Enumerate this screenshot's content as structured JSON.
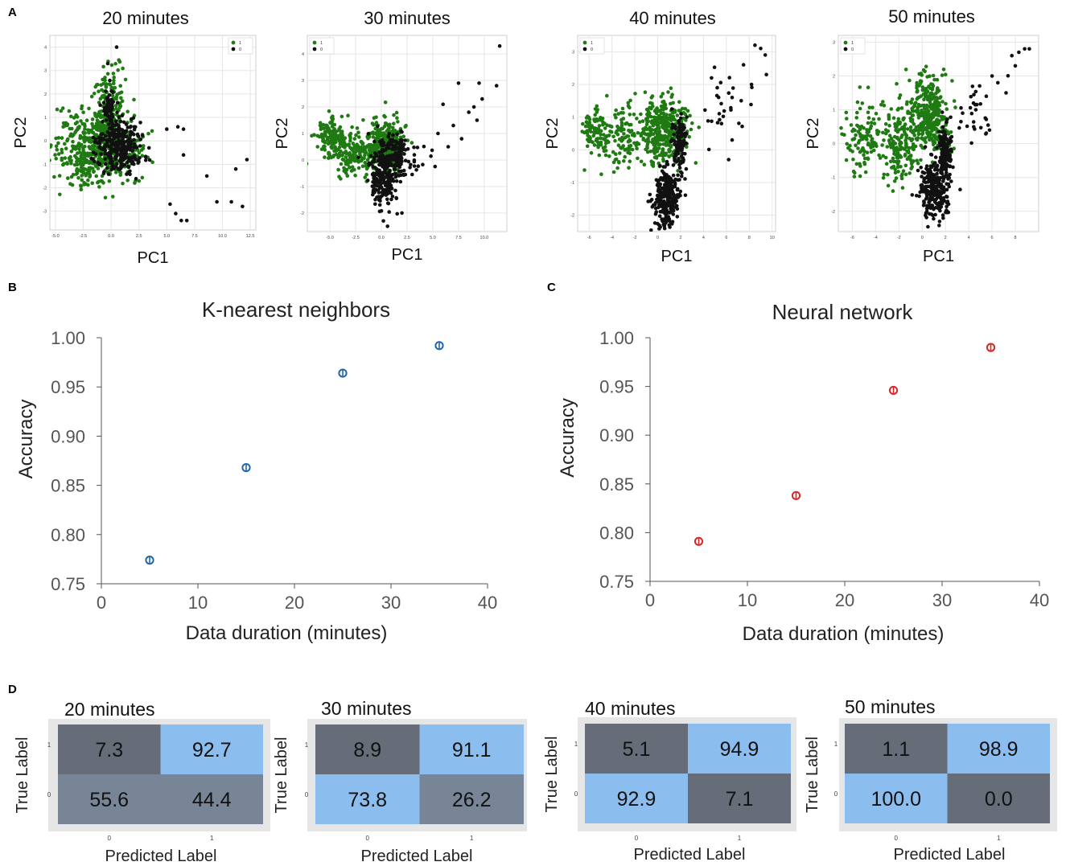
{
  "figure_panels": [
    "A",
    "B",
    "C",
    "D"
  ],
  "colors": {
    "class1": "#1f7a12",
    "class0": "#111111",
    "knn": "#2166ac",
    "nn": "#d62728",
    "cm_dark": "#666d78",
    "cm_mid": "#778597",
    "cm_light": "#8cbdef",
    "cm_frame": "#e6e6e6"
  },
  "chart_data": [
    {
      "type": "scatter",
      "panel": "A",
      "title": "20 minutes",
      "xlabel": "PC1",
      "ylabel": "PC2",
      "xlim": [
        -5.5,
        13
      ],
      "ylim": [
        -3.8,
        4.5
      ],
      "xticks": [
        "-5.0",
        "-2.5",
        "0.0",
        "2.5",
        "5.0",
        "7.5",
        "10.0",
        "12.5"
      ],
      "xtick_values": [
        -5,
        -2.5,
        0,
        2.5,
        5,
        7.5,
        10,
        12.5
      ],
      "yticks": [
        "-3",
        "-2",
        "-1",
        "0",
        "1",
        "2",
        "3",
        "4"
      ],
      "ytick_values": [
        -3,
        -2,
        -1,
        0,
        1,
        2,
        3,
        4
      ],
      "legend": [
        "1",
        "0"
      ],
      "legend_loc": "top-right",
      "series": [
        {
          "name": "1",
          "clusters": [
            {
              "cx": -2.0,
              "cy": -0.3,
              "sx": 1.5,
              "sy": 0.85,
              "n": 380
            },
            {
              "cx": -0.2,
              "cy": 1.3,
              "sx": 0.6,
              "sy": 1.0,
              "n": 180
            },
            {
              "cx": 1.0,
              "cy": -0.4,
              "sx": 1.1,
              "sy": 0.6,
              "n": 150
            }
          ]
        },
        {
          "name": "0",
          "clusters": [
            {
              "cx": 0.7,
              "cy": -0.3,
              "sx": 1.0,
              "sy": 0.55,
              "n": 280
            },
            {
              "cx": -0.2,
              "cy": 1.4,
              "sx": 0.3,
              "sy": 0.5,
              "n": 70
            }
          ],
          "points": [
            [
              5.0,
              0.5
            ],
            [
              6.0,
              0.6
            ],
            [
              6.5,
              0.5
            ],
            [
              6.5,
              -0.6
            ],
            [
              5.3,
              -2.7
            ],
            [
              5.8,
              -3.1
            ],
            [
              6.3,
              -3.4
            ],
            [
              6.8,
              -3.4
            ],
            [
              8.6,
              -1.5
            ],
            [
              9.5,
              -2.6
            ],
            [
              10.8,
              -2.6
            ],
            [
              11.2,
              -1.2
            ],
            [
              12.2,
              -0.8
            ],
            [
              11.8,
              -2.8
            ],
            [
              0.5,
              4.0
            ],
            [
              -0.3,
              3.3
            ]
          ]
        }
      ]
    },
    {
      "type": "scatter",
      "panel": "A",
      "title": "30 minutes",
      "xlabel": "PC1",
      "ylabel": "PC2",
      "xlim": [
        -7.2,
        12.2
      ],
      "ylim": [
        -2.7,
        4.7
      ],
      "xticks": [
        "-5.0",
        "-2.5",
        "0.0",
        "2.5",
        "5.0",
        "7.5",
        "10.0"
      ],
      "xtick_values": [
        -5,
        -2.5,
        0,
        2.5,
        5,
        7.5,
        10
      ],
      "yticks": [
        "-2",
        "-1",
        "0",
        "1",
        "2",
        "3",
        "4"
      ],
      "ytick_values": [
        -2,
        -1,
        0,
        1,
        2,
        3,
        4
      ],
      "legend": [
        "1",
        "0"
      ],
      "legend_loc": "top-left",
      "series": [
        {
          "name": "1",
          "clusters": [
            {
              "cx": -5.0,
              "cy": 0.8,
              "sx": 0.7,
              "sy": 0.35,
              "n": 120
            },
            {
              "cx": -2.8,
              "cy": 0.2,
              "sx": 1.0,
              "sy": 0.4,
              "n": 150
            },
            {
              "cx": 0.3,
              "cy": 0.6,
              "sx": 1.0,
              "sy": 0.45,
              "n": 330
            }
          ]
        },
        {
          "name": "0",
          "clusters": [
            {
              "cx": 0.2,
              "cy": -0.6,
              "sx": 0.7,
              "sy": 0.6,
              "n": 230
            },
            {
              "cx": 1.5,
              "cy": 0.2,
              "sx": 0.5,
              "sy": 0.4,
              "n": 90
            },
            {
              "cx": 3.5,
              "cy": 0.1,
              "sx": 1.0,
              "sy": 0.45,
              "n": 25
            }
          ],
          "points": [
            [
              11.5,
              4.3
            ],
            [
              9.5,
              2.9
            ],
            [
              11.2,
              2.8
            ],
            [
              7.5,
              2.9
            ],
            [
              9.8,
              2.3
            ],
            [
              9.0,
              2.0
            ],
            [
              6.0,
              2.1
            ],
            [
              8.5,
              1.8
            ],
            [
              7.0,
              1.3
            ],
            [
              9.3,
              1.5
            ],
            [
              5.5,
              1.0
            ],
            [
              7.8,
              0.8
            ],
            [
              6.5,
              0.5
            ],
            [
              0.6,
              -2.5
            ],
            [
              0.2,
              -2.3
            ],
            [
              2.0,
              -2.0
            ]
          ]
        }
      ]
    },
    {
      "type": "scatter",
      "panel": "A",
      "title": "40 minutes",
      "xlabel": "PC1",
      "ylabel": "PC2",
      "xlim": [
        -7,
        10.3
      ],
      "ylim": [
        -2.5,
        3.5
      ],
      "xticks": [
        "-6",
        "-4",
        "-2",
        "0",
        "2",
        "4",
        "6",
        "8",
        "10"
      ],
      "xtick_values": [
        -6,
        -4,
        -2,
        0,
        2,
        4,
        6,
        8,
        10
      ],
      "yticks": [
        "-2",
        "-1",
        "0",
        "1",
        "2",
        "3"
      ],
      "ytick_values": [
        -2,
        -1,
        0,
        1,
        2,
        3
      ],
      "legend": [
        "1",
        "0"
      ],
      "legend_loc": "top-left",
      "series": [
        {
          "name": "1",
          "clusters": [
            {
              "cx": -5.5,
              "cy": 0.6,
              "sx": 0.6,
              "sy": 0.35,
              "n": 90
            },
            {
              "cx": -3.0,
              "cy": 0.4,
              "sx": 0.9,
              "sy": 0.45,
              "n": 110
            },
            {
              "cx": 0.5,
              "cy": 0.6,
              "sx": 1.0,
              "sy": 0.5,
              "n": 350
            }
          ]
        },
        {
          "name": "0",
          "clusters": [
            {
              "cx": 0.8,
              "cy": -1.4,
              "sx": 0.55,
              "sy": 0.45,
              "n": 250
            },
            {
              "cx": 1.9,
              "cy": 0.2,
              "sx": 0.3,
              "sy": 0.4,
              "n": 110
            },
            {
              "cx": 5.5,
              "cy": 1.2,
              "sx": 1.2,
              "sy": 0.5,
              "n": 25
            }
          ],
          "points": [
            [
              8.5,
              3.2
            ],
            [
              9.0,
              3.1
            ],
            [
              9.4,
              2.9
            ],
            [
              9.5,
              2.3
            ],
            [
              7.5,
              2.6
            ],
            [
              8.2,
              2.0
            ],
            [
              4.7,
              2.2
            ],
            [
              5.2,
              1.9
            ],
            [
              6.5,
              1.6
            ],
            [
              7.3,
              1.5
            ],
            [
              6.2,
              -0.3
            ],
            [
              6.5,
              0.3
            ],
            [
              1.0,
              -2.3
            ],
            [
              1.3,
              -2.2
            ]
          ]
        }
      ]
    },
    {
      "type": "scatter",
      "panel": "A",
      "title": "50 minutes",
      "xlabel": "PC1",
      "ylabel": "PC2",
      "xlim": [
        -7.2,
        10
      ],
      "ylim": [
        -2.6,
        3.2
      ],
      "xticks": [
        "-6",
        "-4",
        "-2",
        "0",
        "2",
        "4",
        "6",
        "8"
      ],
      "xtick_values": [
        -6,
        -4,
        -2,
        0,
        2,
        4,
        6,
        8
      ],
      "yticks": [
        "-2",
        "-1",
        "0",
        "1",
        "2",
        "3"
      ],
      "ytick_values": [
        -2,
        -1,
        0,
        1,
        2,
        3
      ],
      "legend": [
        "1",
        "0"
      ],
      "legend_loc": "top-left",
      "series": [
        {
          "name": "1",
          "clusters": [
            {
              "cx": -5.0,
              "cy": 0.2,
              "sx": 0.9,
              "sy": 0.5,
              "n": 110
            },
            {
              "cx": -2.0,
              "cy": 0.0,
              "sx": 0.9,
              "sy": 0.6,
              "n": 160
            },
            {
              "cx": 0.6,
              "cy": 0.8,
              "sx": 0.9,
              "sy": 0.6,
              "n": 350
            }
          ]
        },
        {
          "name": "0",
          "clusters": [
            {
              "cx": 1.0,
              "cy": -1.3,
              "sx": 0.7,
              "sy": 0.45,
              "n": 250
            },
            {
              "cx": 2.0,
              "cy": -0.3,
              "sx": 0.3,
              "sy": 0.4,
              "n": 120
            },
            {
              "cx": 4.8,
              "cy": 1.0,
              "sx": 0.9,
              "sy": 0.5,
              "n": 30
            }
          ],
          "points": [
            [
              8.8,
              2.8
            ],
            [
              8.3,
              2.7
            ],
            [
              9.2,
              2.8
            ],
            [
              7.7,
              2.6
            ],
            [
              8.0,
              2.3
            ],
            [
              6.0,
              2.0
            ],
            [
              6.5,
              1.8
            ],
            [
              7.2,
              1.5
            ],
            [
              5.5,
              1.4
            ],
            [
              1.5,
              -2.3
            ],
            [
              1.8,
              -2.2
            ]
          ]
        }
      ]
    },
    {
      "type": "scatter",
      "panel": "B",
      "title": "K-nearest neighbors",
      "xlabel": "Data duration (minutes)",
      "ylabel": "Accuracy",
      "xlim": [
        0,
        40
      ],
      "ylim": [
        0.75,
        1.0
      ],
      "xticks": [
        "0",
        "10",
        "20",
        "30",
        "40"
      ],
      "xtick_values": [
        0,
        10,
        20,
        30,
        40
      ],
      "yticks": [
        "0.75",
        "0.80",
        "0.85",
        "0.90",
        "0.95",
        "1.00"
      ],
      "ytick_values": [
        0.75,
        0.8,
        0.85,
        0.9,
        0.95,
        1.0
      ],
      "x": [
        5,
        15,
        25,
        35
      ],
      "y": [
        0.774,
        0.868,
        0.964,
        0.992
      ],
      "error": [
        0.003,
        0.003,
        0.003,
        0.003
      ],
      "marker_color": "#2166ac"
    },
    {
      "type": "scatter",
      "panel": "C",
      "title": "Neural network",
      "xlabel": "Data duration (minutes)",
      "ylabel": "Accuracy",
      "xlim": [
        0,
        40
      ],
      "ylim": [
        0.75,
        1.0
      ],
      "xticks": [
        "0",
        "10",
        "20",
        "30",
        "40"
      ],
      "xtick_values": [
        0,
        10,
        20,
        30,
        40
      ],
      "yticks": [
        "0.75",
        "0.80",
        "0.85",
        "0.90",
        "0.95",
        "1.00"
      ],
      "ytick_values": [
        0.75,
        0.8,
        0.85,
        0.9,
        0.95,
        1.0
      ],
      "x": [
        5,
        15,
        25,
        35
      ],
      "y": [
        0.791,
        0.838,
        0.946,
        0.99
      ],
      "error": [
        0.003,
        0.003,
        0.003,
        0.003
      ],
      "marker_color": "#d62728"
    },
    {
      "type": "heatmap",
      "panel": "D",
      "title": "20 minutes",
      "xlabel": "Predicted Label",
      "ylabel": "True Label",
      "x_categories": [
        "0",
        "1"
      ],
      "y_categories": [
        "1",
        "0"
      ],
      "values": [
        [
          "7.3",
          "92.7"
        ],
        [
          "55.6",
          "44.4"
        ]
      ],
      "cell_tones": [
        [
          "dark",
          "light"
        ],
        [
          "mid",
          "mid"
        ]
      ]
    },
    {
      "type": "heatmap",
      "panel": "D",
      "title": "30 minutes",
      "xlabel": "Predicted Label",
      "ylabel": "True Label",
      "x_categories": [
        "0",
        "1"
      ],
      "y_categories": [
        "1",
        "0"
      ],
      "values": [
        [
          "8.9",
          "91.1"
        ],
        [
          "73.8",
          "26.2"
        ]
      ],
      "cell_tones": [
        [
          "dark",
          "light"
        ],
        [
          "light",
          "mid"
        ]
      ]
    },
    {
      "type": "heatmap",
      "panel": "D",
      "title": "40 minutes",
      "xlabel": "Predicted Label",
      "ylabel": "True Label",
      "x_categories": [
        "0",
        "1"
      ],
      "y_categories": [
        "1",
        "0"
      ],
      "values": [
        [
          "5.1",
          "94.9"
        ],
        [
          "92.9",
          "7.1"
        ]
      ],
      "cell_tones": [
        [
          "dark",
          "light"
        ],
        [
          "light",
          "dark"
        ]
      ]
    },
    {
      "type": "heatmap",
      "panel": "D",
      "title": "50 minutes",
      "xlabel": "Predicted Label",
      "ylabel": "True Label",
      "x_categories": [
        "0",
        "1"
      ],
      "y_categories": [
        "1",
        "0"
      ],
      "values": [
        [
          "1.1",
          "98.9"
        ],
        [
          "100.0",
          "0.0"
        ]
      ],
      "cell_tones": [
        [
          "dark",
          "light"
        ],
        [
          "light",
          "dark"
        ]
      ]
    }
  ]
}
